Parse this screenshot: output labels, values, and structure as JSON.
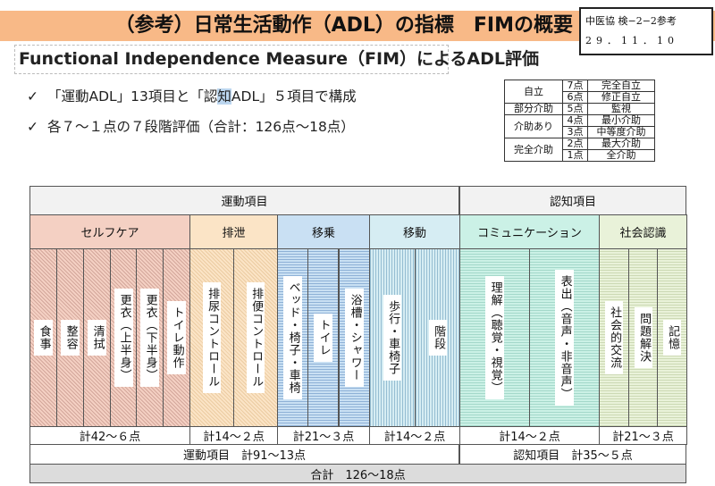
{
  "header": {
    "title": "（参考）日常生活動作（ADL）の指標　FIMの概要",
    "ref_code": "中医協 検−2−2参考",
    "ref_date": "29．11．10"
  },
  "subtitle": "Functional Independence Measure（FIM）によるADL評価",
  "bullets": [
    {
      "mark": "✓",
      "pre": "「運動ADL」13項目と「認",
      "hl": "知",
      "post": "ADL」５項目で構成"
    },
    {
      "mark": "✓",
      "pre": "各７～１点の７段階評価（合計：126点～18点）",
      "hl": "",
      "post": ""
    }
  ],
  "score_table": [
    {
      "level": "自立",
      "rows": [
        {
          "points": "7点",
          "desc": "完全自立"
        },
        {
          "points": "6点",
          "desc": "修正自立"
        }
      ]
    },
    {
      "level": "部分介助",
      "rows": [
        {
          "points": "5点",
          "desc": "監視"
        }
      ]
    },
    {
      "level": "介助あり",
      "rows": [
        {
          "points": "4点",
          "desc": "最小介助"
        },
        {
          "points": "3点",
          "desc": "中等度介助"
        }
      ]
    },
    {
      "level": "完全介助",
      "rows": [
        {
          "points": "2点",
          "desc": "最大介助"
        },
        {
          "points": "1点",
          "desc": "全介助"
        }
      ]
    }
  ],
  "fim": {
    "sections": [
      {
        "label": "運動項目",
        "total": "運動項目　計91～13点"
      },
      {
        "label": "認知項目",
        "total": "認知項目　計35～５点"
      }
    ],
    "grand_total": "合計　126～18点",
    "groups": [
      {
        "label": "セルフケア",
        "color": "#f4d0c3",
        "items": [
          "食事",
          "整容",
          "清拭",
          "更衣（上半身）",
          "更衣（下半身）",
          "トイレ動作"
        ],
        "subtotal": "計42～６点"
      },
      {
        "label": "排泄",
        "color": "#fbe4c6",
        "items": [
          "排尿コントロール",
          "排便コントロール"
        ],
        "subtotal": "計14～２点"
      },
      {
        "label": "移乗",
        "color": "#c9e0f3",
        "items": [
          "ベッド・椅子・車椅",
          "トイレ",
          "浴槽・シャワー"
        ],
        "subtotal": "計21～３点"
      },
      {
        "label": "移動",
        "color": "#d6edf3",
        "items": [
          "歩行・車椅子",
          "階段"
        ],
        "subtotal": "計14～２点"
      },
      {
        "label": "コミュニケーション",
        "color": "#cbf1e6",
        "items": [
          "理解（聴覚・視覚）",
          "表出（音声・非音声）"
        ],
        "subtotal": "計14～２点"
      },
      {
        "label": "社会認識",
        "color": "#e9f2d9",
        "items": [
          "社会的交流",
          "問題解決",
          "記憶"
        ],
        "subtotal": "計21～３点"
      }
    ]
  }
}
